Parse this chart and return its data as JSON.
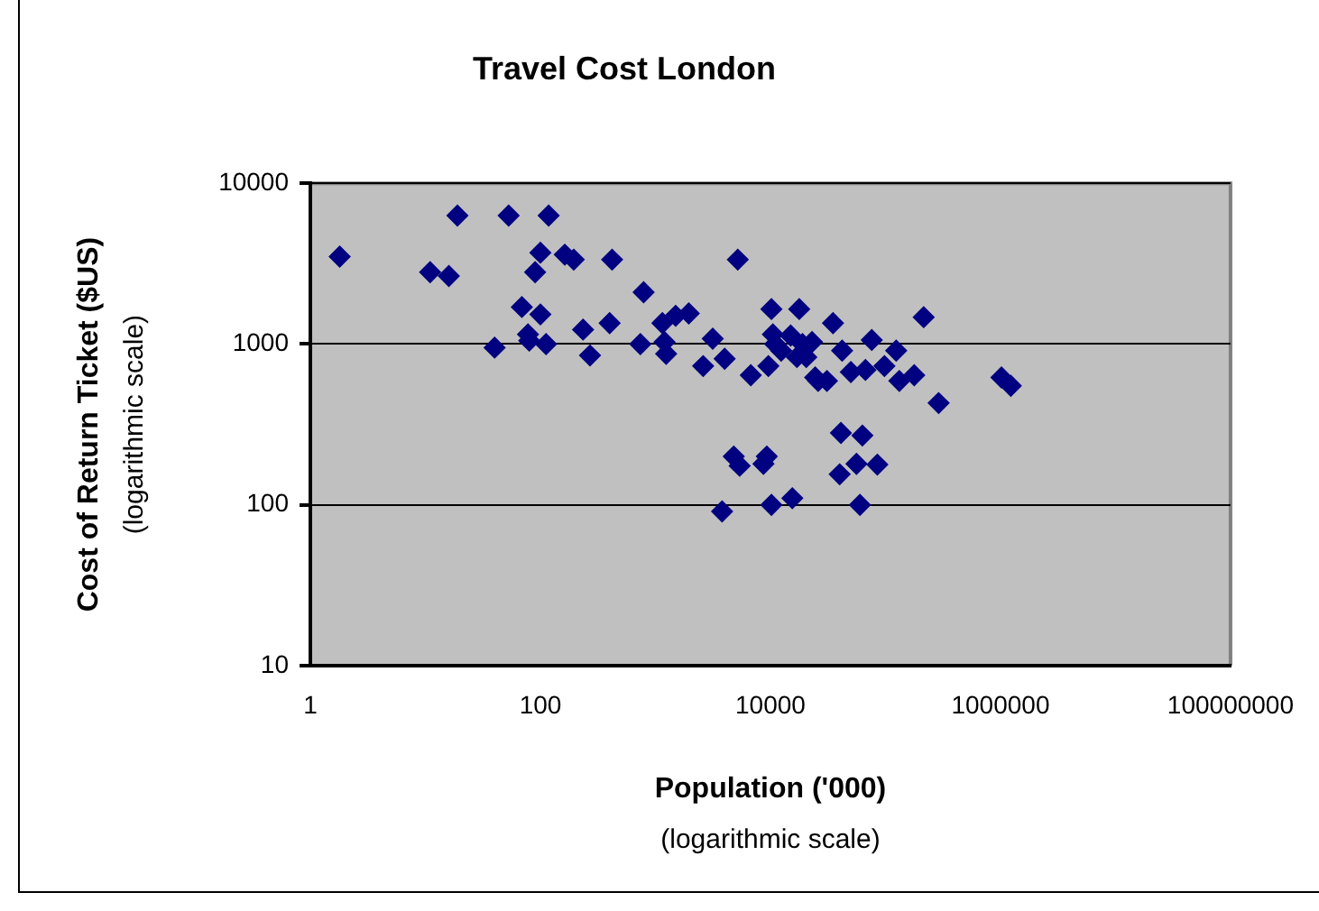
{
  "chart_data": {
    "type": "scatter",
    "title": "Travel Cost London",
    "xlabel": "Population ('000)",
    "ylabel": "Cost of Return Ticket ($US)",
    "annotations": [
      "(logarithmic scale)",
      "(logarithmic scale)"
    ],
    "log": "xy",
    "grid": "y",
    "legend": false,
    "marker": "diamond",
    "xlim": [
      1,
      100000000
    ],
    "xticks": [
      1,
      100,
      10000,
      1000000,
      100000000
    ],
    "ylim": [
      10,
      10000
    ],
    "yticks": [
      10,
      100,
      1000,
      10000
    ],
    "series": [
      {
        "color": "#000080",
        "x": [
          1.8,
          19,
          53,
          118,
          11,
          16,
          100,
          90,
          163,
          195,
          420,
          5200,
          790,
          69,
          100,
          78,
          80,
          40,
          112,
          235,
          270,
          400,
          740,
          1150,
          1240,
          1500,
          1950,
          1200,
          2600,
          3150,
          4000,
          6750,
          9600,
          10200,
          10500,
          4800,
          5400,
          9300,
          8700,
          3800,
          10200,
          17800,
          35000,
          215000,
          76000,
          15000,
          19000,
          23000,
          12400,
          20500,
          42000,
          124000,
          24500,
          31000,
          50000,
          67000,
          98000,
          132000,
          178000,
          290000,
          1020000,
          1230000,
          41000,
          63000,
          40000,
          56000,
          85000,
          60000,
          15500,
          11000,
          17000,
          26000
        ],
        "values": [
          3500,
          6300,
          6300,
          6300,
          2800,
          2650,
          3700,
          2800,
          3600,
          3350,
          3350,
          3350,
          2100,
          1700,
          1530,
          1150,
          1050,
          950,
          1000,
          1230,
          850,
          1350,
          1000,
          1350,
          870,
          1500,
          1550,
          1030,
          730,
          1080,
          810,
          640,
          730,
          1650,
          1150,
          200,
          175,
          200,
          180,
          91,
          100,
          1650,
          1350,
          1470,
          1060,
          1130,
          1000,
          1030,
          910,
          830,
          910,
          910,
          620,
          590,
          670,
          690,
          730,
          590,
          640,
          430,
          620,
          550,
          280,
          270,
          155,
          180,
          178,
          100,
          110,
          1000,
          830,
          590
        ]
      }
    ]
  }
}
